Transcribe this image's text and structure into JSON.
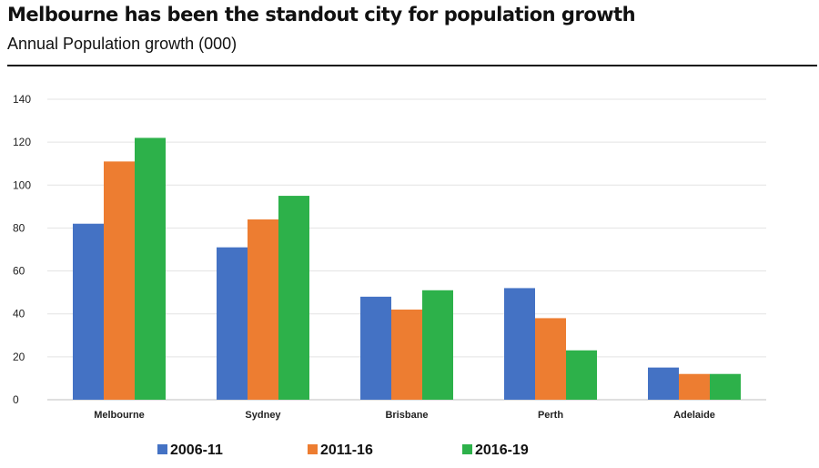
{
  "header": {
    "title": "Melbourne has been the standout city for population growth",
    "subtitle": "Annual Population growth (000)"
  },
  "chart_data": {
    "type": "bar",
    "title": "Melbourne has been the standout city for population growth",
    "subtitle": "Annual Population growth (000)",
    "xlabel": "",
    "ylabel": "",
    "ylim": [
      0,
      140
    ],
    "yticks": [
      0,
      20,
      40,
      60,
      80,
      100,
      120,
      140
    ],
    "grid": true,
    "legend_position": "bottom",
    "categories": [
      "Melbourne",
      "Sydney",
      "Brisbane",
      "Perth",
      "Adelaide"
    ],
    "series": [
      {
        "name": "2006-11",
        "color": "#4472c4",
        "values": [
          82,
          71,
          48,
          52,
          15
        ]
      },
      {
        "name": "2011-16",
        "color": "#ed7d31",
        "values": [
          111,
          84,
          42,
          38,
          12
        ]
      },
      {
        "name": "2016-19",
        "color": "#2db14a",
        "values": [
          122,
          95,
          51,
          23,
          12
        ]
      }
    ]
  }
}
